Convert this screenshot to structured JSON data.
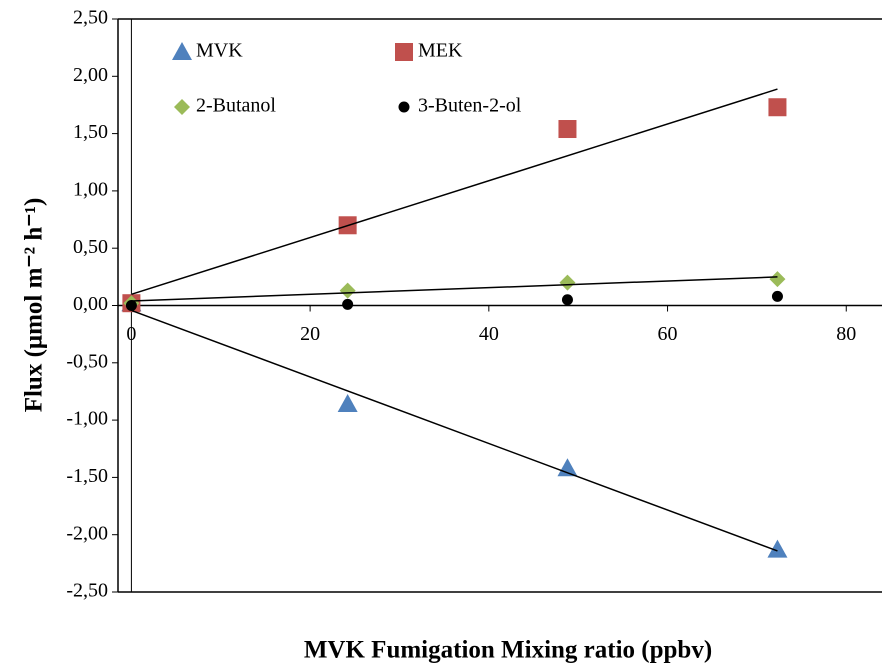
{
  "chart_data": {
    "type": "scatter",
    "x_label": "MVK Fumigation Mixing ratio (ppbv)",
    "y_label": "Flux (μmol m⁻² h⁻¹)",
    "series": [
      {
        "name": "MVK",
        "color": "#4f81bd",
        "marker": "triangle",
        "trendline": true,
        "x": [
          0,
          24.2,
          48.8,
          72.3
        ],
        "values": [
          0.02,
          -0.86,
          -1.42,
          -2.13
        ]
      },
      {
        "name": "MEK",
        "color": "#c0504d",
        "marker": "square",
        "trendline": true,
        "x": [
          0,
          24.2,
          48.8,
          72.3
        ],
        "values": [
          0.02,
          0.7,
          1.54,
          1.73
        ]
      },
      {
        "name": "2-Butanol",
        "color": "#9bbb59",
        "marker": "diamond",
        "trendline": true,
        "x": [
          0,
          24.2,
          48.8,
          72.3
        ],
        "values": [
          0.02,
          0.13,
          0.2,
          0.23
        ]
      },
      {
        "name": "3-Buten-2-ol",
        "color": "#000000",
        "marker": "circle",
        "trendline": false,
        "x": [
          0,
          24.2,
          48.8,
          72.3
        ],
        "values": [
          0,
          0.01,
          0.05,
          0.08
        ]
      }
    ],
    "xlim": [
      -1.5,
      84
    ],
    "xticks": [
      0,
      20,
      40,
      60,
      80
    ],
    "ylim": [
      -2.5,
      2.5
    ],
    "yticks": [
      {
        "value": -2.5,
        "label": "-2,50"
      },
      {
        "value": -2,
        "label": "-2,00"
      },
      {
        "value": -1.5,
        "label": "-1,50"
      },
      {
        "value": -1,
        "label": "-1,00"
      },
      {
        "value": -0.5,
        "label": "-0,50"
      },
      {
        "value": 0,
        "label": "0,00"
      },
      {
        "value": 0.5,
        "label": "0,50"
      },
      {
        "value": 1,
        "label": "1,00"
      },
      {
        "value": 1.5,
        "label": "1,50"
      },
      {
        "value": 2,
        "label": "2,00"
      },
      {
        "value": 2.5,
        "label": "2,50"
      }
    ],
    "legend": "upper left"
  }
}
